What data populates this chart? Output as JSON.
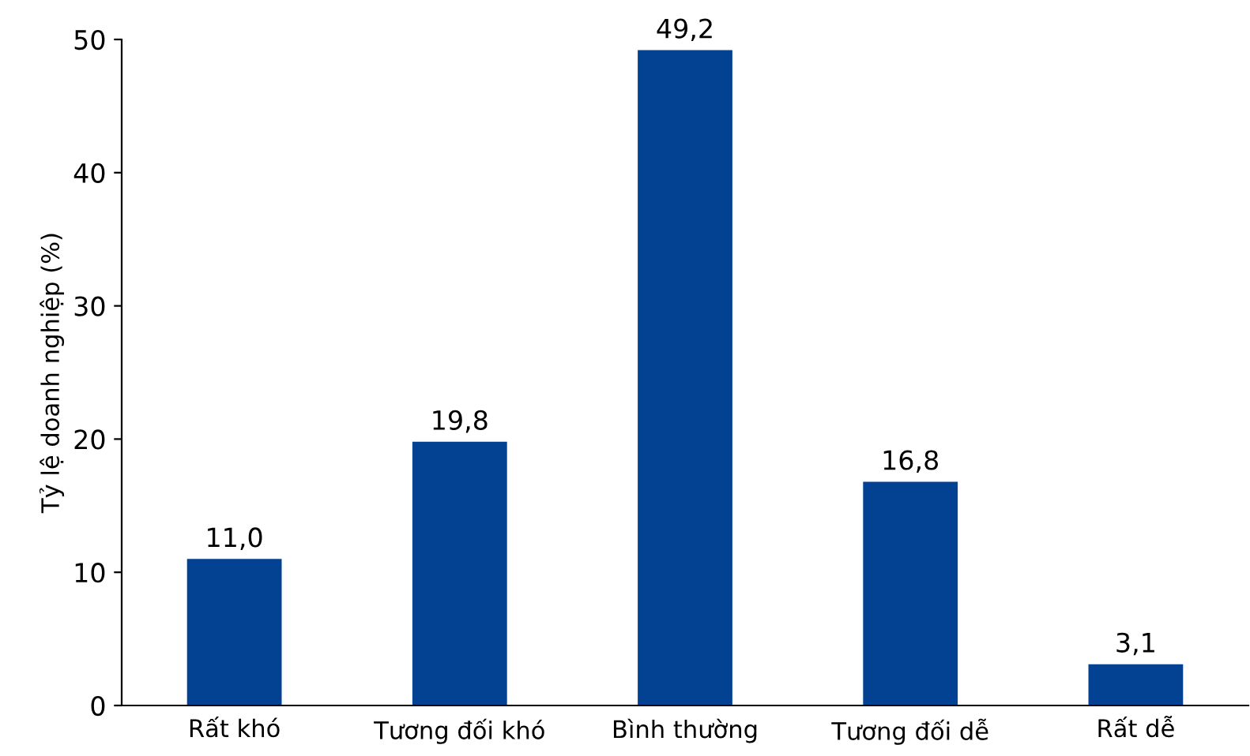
{
  "chart_data": {
    "type": "bar",
    "ylabel": "Tỷ lệ doanh nghiệp (%)",
    "categories": [
      "Rất khó",
      "Tương đối khó",
      "Bình thường",
      "Tương đối dễ",
      "Rất dễ"
    ],
    "values": [
      11.0,
      19.8,
      49.2,
      16.8,
      3.1
    ],
    "value_labels": [
      "11,0",
      "19,8",
      "49,2",
      "16,8",
      "3,1"
    ],
    "color": "#034292",
    "ylim": [
      0,
      50
    ],
    "yticks": [
      0,
      10,
      20,
      30,
      40,
      50
    ],
    "grid": false,
    "legend": false
  }
}
